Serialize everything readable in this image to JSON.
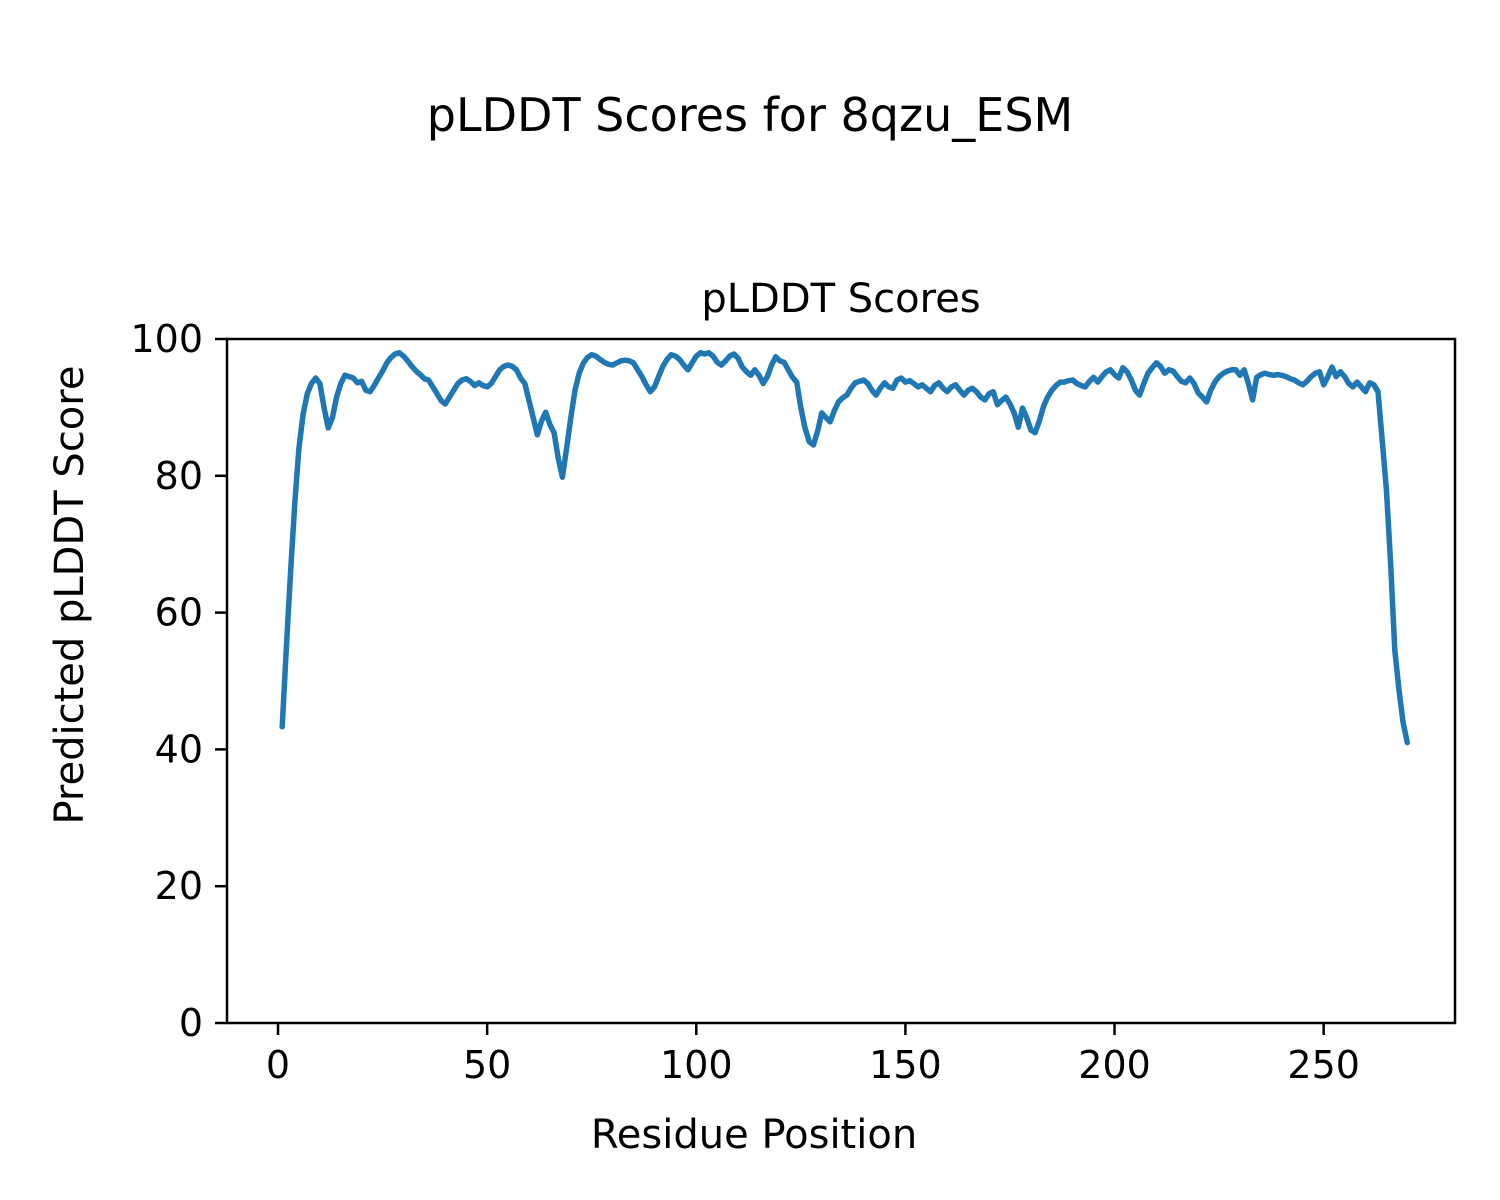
{
  "figure": {
    "suptitle": "pLDDT Scores for 8qzu_ESM",
    "axes_title": "pLDDT Scores",
    "xlabel": "Residue Position",
    "ylabel": "Predicted pLDDT Score"
  },
  "colors": {
    "line": "#1f77b4",
    "axes": "#000000",
    "background": "#ffffff",
    "text": "#000000"
  },
  "chart_data": {
    "type": "line",
    "title": "pLDDT Scores",
    "xlabel": "Residue Position",
    "ylabel": "Predicted pLDDT Score",
    "x_ticks": [
      0,
      50,
      100,
      150,
      200,
      250
    ],
    "y_ticks": [
      0,
      20,
      40,
      60,
      80,
      100
    ],
    "xlim": [
      -12.2,
      281.4
    ],
    "ylim": [
      0,
      100
    ],
    "grid": false,
    "legend_position": "none",
    "series": [
      {
        "name": "pLDDT",
        "color": "#1f77b4",
        "x_start": 1,
        "x_step": 1,
        "values": [
          43.3,
          55,
          66,
          76,
          84,
          89,
          92,
          93.5,
          94.3,
          93.5,
          90,
          87,
          88.5,
          91.5,
          93.5,
          94.7,
          94.5,
          94.3,
          93.6,
          93.8,
          92.5,
          92.3,
          93.2,
          94.3,
          95.3,
          96.5,
          97.3,
          97.8,
          98,
          97.5,
          96.8,
          96,
          95.3,
          94.8,
          94.2,
          94,
          93,
          92,
          91,
          90.5,
          91.5,
          92.5,
          93.5,
          94,
          94.2,
          93.8,
          93.2,
          93.6,
          93.2,
          93,
          93.5,
          94.5,
          95.5,
          96,
          96.2,
          96,
          95.5,
          94.3,
          93.5,
          91,
          88.5,
          86,
          88,
          89.3,
          87.5,
          86.3,
          82.5,
          79.8,
          84,
          88.5,
          92.5,
          95,
          96.5,
          97.3,
          97.7,
          97.5,
          97,
          96.6,
          96.3,
          96.2,
          96.5,
          96.8,
          96.9,
          96.8,
          96.5,
          95.5,
          94.5,
          93.3,
          92.3,
          93,
          94.5,
          96,
          97,
          97.7,
          97.5,
          97,
          96.2,
          95.5,
          96.5,
          97.5,
          98,
          97.8,
          98,
          97.5,
          96.6,
          96.2,
          96.8,
          97.5,
          97.8,
          97.2,
          95.9,
          95.2,
          94.7,
          95.5,
          94.7,
          93.5,
          94.5,
          96.2,
          97.4,
          96.8,
          96.6,
          95.5,
          94.4,
          93.7,
          90,
          87,
          85,
          84.5,
          86.5,
          89.2,
          88.5,
          87.9,
          89.5,
          90.8,
          91.4,
          91.8,
          92.8,
          93.6,
          93.8,
          94,
          93.5,
          92.5,
          91.8,
          92.8,
          93.6,
          93,
          92.8,
          94,
          94.3,
          93.7,
          93.9,
          93.5,
          93,
          93.3,
          92.8,
          92.3,
          93.2,
          93.6,
          92.8,
          92.3,
          93,
          93.3,
          92.5,
          91.8,
          92.5,
          92.8,
          92.3,
          91.5,
          91.1,
          92,
          92.3,
          90.4,
          91,
          91.5,
          90.5,
          89.2,
          87.1,
          89.9,
          88.5,
          86.7,
          86.3,
          88,
          90.1,
          91.5,
          92.5,
          93.2,
          93.7,
          93.7,
          93.9,
          94,
          93.5,
          93.2,
          93,
          93.8,
          94.4,
          93.7,
          94.5,
          95.2,
          95.5,
          94.8,
          94.3,
          95.8,
          95.2,
          94,
          92.5,
          91.8,
          93.5,
          95,
          95.8,
          96.5,
          96,
          95,
          95.5,
          95.3,
          94.5,
          93.8,
          93.6,
          94.3,
          93.5,
          92.1,
          91.5,
          90.8,
          92.5,
          93.7,
          94.5,
          95,
          95.3,
          95.5,
          95.5,
          94.7,
          95.5,
          93.5,
          91.1,
          94.4,
          94.8,
          95,
          94.8,
          94.7,
          94.8,
          94.7,
          94.5,
          94.2,
          94,
          93.6,
          93.3,
          93.8,
          94.5,
          95,
          95.2,
          93.3,
          94.5,
          95.9,
          94.5,
          95.2,
          94.5,
          93.5,
          93,
          93.7,
          93,
          92.3,
          93.6,
          93.3,
          92.3,
          85.2,
          78,
          67.3,
          54.5,
          48.7,
          43.9,
          41
        ]
      }
    ]
  }
}
